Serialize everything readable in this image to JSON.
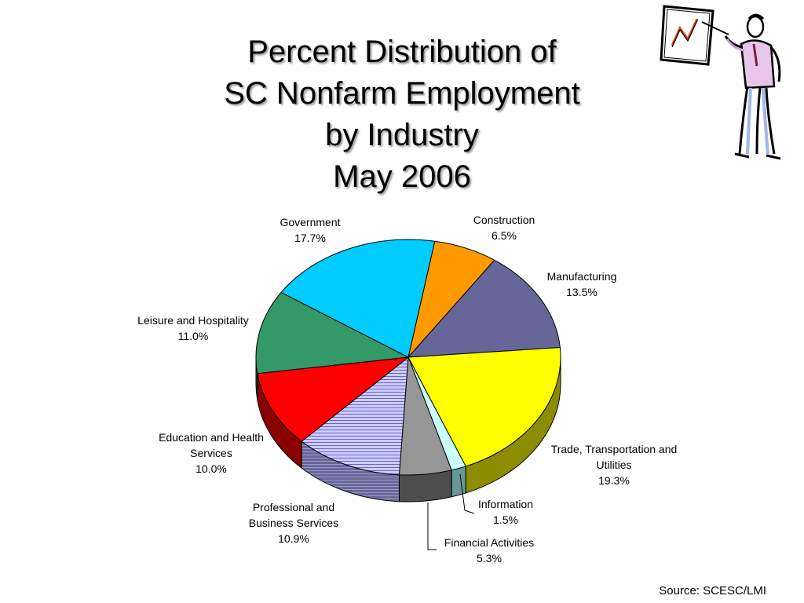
{
  "slide": {
    "title_lines": [
      "Percent Distribution of",
      "SC Nonfarm Employment",
      "by Industry",
      "May 2006"
    ],
    "source": "Source: SCESC/LMI",
    "clipart_icon": "presenter-with-chart-clipart"
  },
  "chart_data": {
    "type": "pie",
    "title": "Percent Distribution of SC Nonfarm Employment by Industry May 2006",
    "three_d": true,
    "slices": [
      {
        "name_lines": [
          "Construction"
        ],
        "value_label": "6.5%",
        "value": 6.5,
        "color": "#ff9900",
        "side_color": "#b36b00"
      },
      {
        "name_lines": [
          "Manufacturing"
        ],
        "value_label": "13.5%",
        "value": 13.5,
        "color": "#666699",
        "side_color": "#3f3f66"
      },
      {
        "name_lines": [
          "Trade, Transportation and",
          "Utilities"
        ],
        "value_label": "19.3%",
        "value": 19.3,
        "color": "#ffff00",
        "side_color": "#8c8c00"
      },
      {
        "name_lines": [
          "Information"
        ],
        "value_label": "1.5%",
        "value": 1.5,
        "color": "#ccffff",
        "side_color": "#669999"
      },
      {
        "name_lines": [
          "Financial Activities"
        ],
        "value_label": "5.3%",
        "value": 5.3,
        "color": "#969696",
        "side_color": "#4d4d4d"
      },
      {
        "name_lines": [
          "Professional and",
          "Business Services"
        ],
        "value_label": "10.9%",
        "value": 10.9,
        "color": "#ccccff",
        "side_color": "#6a6a99",
        "pattern": "horizontal-stripes"
      },
      {
        "name_lines": [
          "Education and Health",
          "Services"
        ],
        "value_label": "10.0%",
        "value": 10.0,
        "color": "#ff0000",
        "side_color": "#8b0000"
      },
      {
        "name_lines": [
          "Leisure and Hospitality"
        ],
        "value_label": "11.0%",
        "value": 11.0,
        "color": "#339966",
        "side_color": "#1e5c3d"
      },
      {
        "name_lines": [
          "Government"
        ],
        "value_label": "17.7%",
        "value": 17.7,
        "color": "#00ccff",
        "side_color": "#007a99"
      }
    ]
  }
}
